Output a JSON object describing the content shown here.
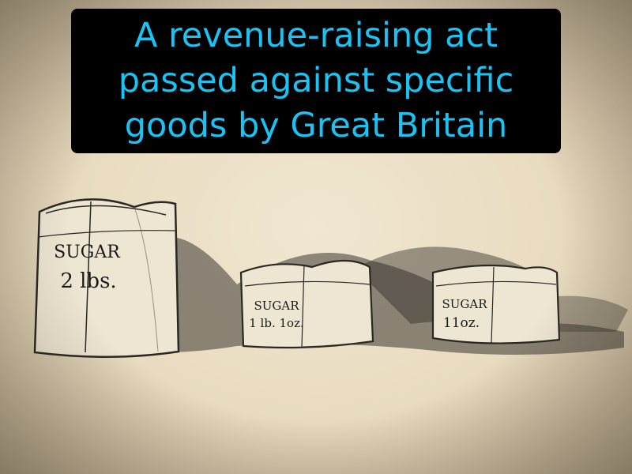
{
  "caption": {
    "text": "A revenue-raising act passed against specific goods by Great Britain",
    "lines": [
      "A revenue-raising act",
      "passed against specific",
      "goods by Great Britain"
    ],
    "text_color": "#19c4f4",
    "background_color": "#000000"
  },
  "illustration": {
    "bags": [
      {
        "product": "SUGAR",
        "weight": "2 lbs."
      },
      {
        "product": "SUGAR",
        "weight": "1 lb. 1oz."
      },
      {
        "product": "SUGAR",
        "weight": "11oz."
      }
    ],
    "paper_color": "#ede2c8"
  }
}
